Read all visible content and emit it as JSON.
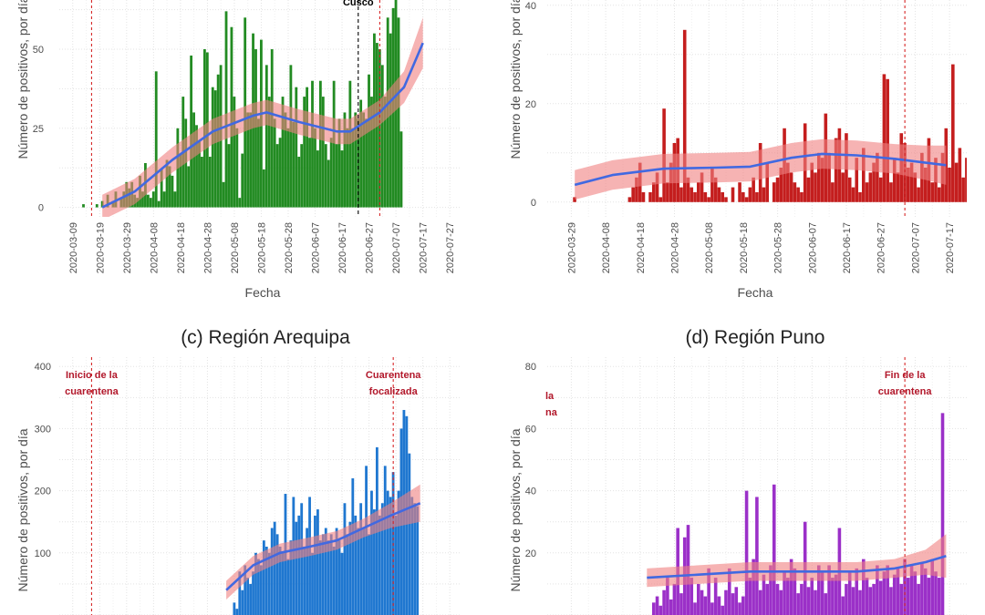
{
  "chart_data": [
    {
      "id": "a",
      "type": "bar",
      "title": "",
      "xlabel": "Fecha",
      "ylabel": "Número de positivos, por día",
      "x_ticks": [
        "2020-03-09",
        "2020-03-19",
        "2020-03-29",
        "2020-04-08",
        "2020-04-18",
        "2020-04-28",
        "2020-05-08",
        "2020-05-18",
        "2020-05-28",
        "2020-06-07",
        "2020-06-17",
        "2020-06-27",
        "2020-07-07",
        "2020-07-17",
        "2020-07-27"
      ],
      "xlim": [
        "2020-03-04",
        "2020-07-31"
      ],
      "y_ticks": [
        0,
        25,
        50
      ],
      "ylim": [
        -3,
        67
      ],
      "bar_color": "#228b22",
      "start_date": "2020-03-13",
      "values": [
        1,
        0,
        0,
        0,
        0,
        1,
        0,
        2,
        0,
        4,
        0,
        2,
        5,
        0,
        3,
        5,
        8,
        6,
        8,
        4,
        3,
        10,
        5,
        14,
        4,
        3,
        5,
        43,
        2,
        12,
        5,
        15,
        13,
        10,
        5,
        25,
        17,
        35,
        28,
        13,
        48,
        30,
        26,
        21,
        16,
        50,
        49,
        16,
        38,
        37,
        42,
        45,
        8,
        62,
        20,
        57,
        35,
        25,
        3,
        17,
        60,
        30,
        30,
        55,
        50,
        28,
        53,
        12,
        45,
        35,
        50,
        28,
        20,
        22,
        35,
        30,
        25,
        45,
        27,
        38,
        16,
        20,
        35,
        38,
        22,
        40,
        25,
        18,
        40,
        35,
        20,
        15,
        22,
        40,
        20,
        28,
        18,
        30,
        25,
        40,
        25,
        30,
        28,
        34,
        30,
        28,
        42,
        35,
        55,
        52,
        50,
        45,
        35,
        60,
        55,
        63,
        70,
        60,
        24
      ],
      "trend": {
        "color": "#4169e1",
        "band_color": "#f08080",
        "points": [
          [
            "2020-03-20",
            0
          ],
          [
            "2020-04-01",
            5
          ],
          [
            "2020-04-15",
            15
          ],
          [
            "2020-04-30",
            24
          ],
          [
            "2020-05-15",
            29
          ],
          [
            "2020-05-20",
            30
          ],
          [
            "2020-06-01",
            27
          ],
          [
            "2020-06-15",
            24
          ],
          [
            "2020-06-20",
            24
          ],
          [
            "2020-07-01",
            30
          ],
          [
            "2020-07-10",
            38
          ],
          [
            "2020-07-17",
            52
          ]
        ],
        "ci": [
          4,
          4,
          4,
          4,
          4,
          4,
          4,
          4,
          4,
          4,
          5,
          8
        ]
      },
      "vlines": [
        {
          "date": "2020-03-16",
          "color": "#d62728",
          "dash": "3,3",
          "label": ""
        },
        {
          "date": "2020-06-23",
          "color": "#000000",
          "dash": "4,3",
          "label": "Cusco"
        },
        {
          "date": "2020-07-01",
          "color": "#d62728",
          "dash": "3,3",
          "label": ""
        }
      ]
    },
    {
      "id": "b",
      "type": "bar",
      "title": "",
      "xlabel": "Fecha",
      "ylabel": "Número de positivos, por día",
      "x_ticks": [
        "2020-03-29",
        "2020-04-08",
        "2020-04-18",
        "2020-04-28",
        "2020-05-08",
        "2020-05-18",
        "2020-05-28",
        "2020-06-07",
        "2020-06-17",
        "2020-06-27",
        "2020-07-07",
        "2020-07-17"
      ],
      "xlim": [
        "2020-03-22",
        "2020-07-22"
      ],
      "y_ticks": [
        0,
        20,
        40
      ],
      "ylim": [
        -3,
        42
      ],
      "bar_color": "#c41e1e",
      "start_date": "2020-03-30",
      "values": [
        1,
        0,
        0,
        0,
        0,
        0,
        0,
        0,
        0,
        0,
        0,
        0,
        0,
        0,
        0,
        0,
        1,
        3,
        5,
        8,
        2,
        0,
        2,
        4,
        6,
        1,
        19,
        4,
        8,
        12,
        13,
        3,
        35,
        5,
        3,
        2,
        4,
        6,
        2,
        1,
        7,
        5,
        3,
        2,
        1,
        0,
        3,
        0,
        4,
        2,
        1,
        3,
        5,
        2,
        12,
        3,
        8,
        0,
        4,
        5,
        7,
        15,
        8,
        6,
        4,
        3,
        2,
        16,
        5,
        8,
        6,
        10,
        9,
        18,
        10,
        4,
        13,
        15,
        6,
        14,
        5,
        3,
        9,
        2,
        11,
        4,
        6,
        8,
        10,
        5,
        26,
        25,
        4,
        9,
        6,
        14,
        12,
        7,
        8,
        6,
        3,
        10,
        7,
        13,
        4,
        9,
        3,
        10,
        15,
        7,
        28,
        8,
        11,
        5,
        9,
        12,
        7
      ],
      "trend": {
        "color": "#4169e1",
        "band_color": "#f08080",
        "points": [
          [
            "2020-03-30",
            3.5
          ],
          [
            "2020-04-10",
            5.5
          ],
          [
            "2020-04-25",
            6.8
          ],
          [
            "2020-05-10",
            7
          ],
          [
            "2020-05-20",
            7.2
          ],
          [
            "2020-06-01",
            9
          ],
          [
            "2020-06-10",
            9.8
          ],
          [
            "2020-06-20",
            9.5
          ],
          [
            "2020-07-01",
            8.8
          ],
          [
            "2020-07-10",
            8
          ],
          [
            "2020-07-16",
            7.5
          ]
        ],
        "ci": [
          3,
          3,
          3,
          3,
          3,
          3,
          3,
          3,
          3,
          3.5,
          4
        ]
      },
      "vlines": [
        {
          "date": "2020-07-04",
          "color": "#d62728",
          "dash": "3,3",
          "label": ""
        }
      ]
    },
    {
      "id": "c",
      "type": "bar",
      "title": "(c) Región Arequipa",
      "xlabel": "",
      "ylabel": "Número de positivos, por día",
      "xlim": [
        "2020-03-04",
        "2020-07-31"
      ],
      "y_ticks": [
        100,
        200,
        300,
        400
      ],
      "ylim": [
        0,
        415
      ],
      "bar_color": "#1f77d0",
      "start_date": "2020-05-05",
      "values": [
        0,
        0,
        0,
        20,
        10,
        70,
        40,
        80,
        60,
        50,
        70,
        100,
        90,
        80,
        120,
        110,
        100,
        140,
        150,
        130,
        110,
        100,
        195,
        90,
        120,
        190,
        150,
        160,
        180,
        110,
        140,
        190,
        100,
        160,
        170,
        120,
        130,
        140,
        120,
        130,
        110,
        140,
        120,
        100,
        180,
        130,
        150,
        220,
        160,
        140,
        180,
        140,
        240,
        130,
        200,
        170,
        270,
        160,
        180,
        240,
        200,
        190,
        230,
        160,
        200,
        300,
        330,
        320,
        260,
        190,
        180,
        175
      ],
      "trend": {
        "color": "#4169e1",
        "band_color": "#f08080",
        "points": [
          [
            "2020-05-05",
            40
          ],
          [
            "2020-05-15",
            80
          ],
          [
            "2020-05-25",
            100
          ],
          [
            "2020-06-05",
            110
          ],
          [
            "2020-06-15",
            120
          ],
          [
            "2020-06-25",
            140
          ],
          [
            "2020-07-05",
            160
          ],
          [
            "2020-07-16",
            180
          ]
        ],
        "ci": [
          15,
          15,
          15,
          15,
          15,
          15,
          20,
          30
        ]
      },
      "vlines": [
        {
          "date": "2020-03-16",
          "color": "#d62728",
          "dash": "3,3",
          "label": "Inicio de la cuarentena",
          "label_lines": [
            "Inicio de la",
            "cuarentena"
          ]
        },
        {
          "date": "2020-07-06",
          "color": "#d62728",
          "dash": "3,3",
          "label": "Cuarentena focalizada",
          "label_lines": [
            "Cuarentena",
            "focalizada"
          ]
        }
      ]
    },
    {
      "id": "d",
      "type": "bar",
      "title": "(d) Región Puno",
      "xlabel": "",
      "ylabel": "Número de positivos, por día",
      "xlim": [
        "2020-03-22",
        "2020-07-22"
      ],
      "y_ticks": [
        20,
        40,
        60,
        80
      ],
      "ylim": [
        0,
        83
      ],
      "bar_color": "#9b30c8",
      "start_date": "2020-04-20",
      "values": [
        0,
        0,
        4,
        6,
        3,
        8,
        12,
        5,
        10,
        28,
        7,
        25,
        29,
        12,
        4,
        10,
        8,
        6,
        15,
        4,
        12,
        6,
        3,
        8,
        15,
        7,
        9,
        4,
        6,
        40,
        12,
        18,
        38,
        8,
        13,
        10,
        16,
        42,
        10,
        8,
        14,
        12,
        18,
        15,
        7,
        10,
        30,
        9,
        12,
        8,
        16,
        14,
        7,
        16,
        12,
        13,
        28,
        6,
        10,
        14,
        9,
        15,
        8,
        18,
        12,
        9,
        10,
        16,
        11,
        14,
        16,
        9,
        13,
        15,
        10,
        18,
        12,
        16,
        14,
        10,
        17,
        15,
        12,
        18,
        14,
        12,
        65
      ],
      "trend": {
        "color": "#4169e1",
        "band_color": "#f08080",
        "points": [
          [
            "2020-04-20",
            12
          ],
          [
            "2020-05-05",
            13
          ],
          [
            "2020-05-20",
            14
          ],
          [
            "2020-06-05",
            14
          ],
          [
            "2020-06-20",
            14
          ],
          [
            "2020-07-01",
            15
          ],
          [
            "2020-07-10",
            17
          ],
          [
            "2020-07-16",
            19
          ]
        ],
        "ci": [
          3,
          3,
          3,
          3,
          3,
          3,
          4,
          7
        ]
      },
      "vlines": [
        {
          "date": "2020-07-04",
          "color": "#d62728",
          "dash": "3,3",
          "label": "Fin de la cuarentena",
          "label_lines": [
            "Fin de la",
            "cuarentena"
          ]
        }
      ],
      "clipped_label_lines": [
        "la",
        "na"
      ]
    }
  ]
}
